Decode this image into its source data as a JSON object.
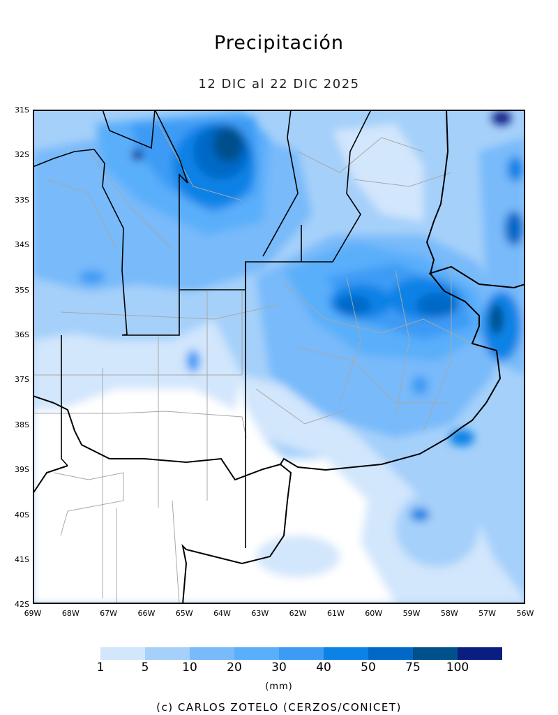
{
  "title": "Precipitación",
  "subtitle": "12 DIC al 22 DIC 2025",
  "lat_labels": [
    "31S",
    "32S",
    "33S",
    "34S",
    "35S",
    "36S",
    "37S",
    "38S",
    "39S",
    "40S",
    "41S",
    "42S"
  ],
  "lon_labels": [
    "69W",
    "68W",
    "67W",
    "66W",
    "65W",
    "64W",
    "63W",
    "62W",
    "61W",
    "60W",
    "59W",
    "58W",
    "57W",
    "56W"
  ],
  "colorbar": {
    "levels": [
      "1",
      "5",
      "10",
      "20",
      "30",
      "40",
      "50",
      "75",
      "100"
    ],
    "colors": [
      "#d2e6fc",
      "#a5d0fa",
      "#78bafa",
      "#5aaffa",
      "#3c9bf5",
      "#0a82e6",
      "#0069c8",
      "#00508c",
      "#0a1e82"
    ],
    "unit": "(mm)"
  },
  "credit": "(c) CARLOS ZOTELO (CERZOS/CONICET)"
}
